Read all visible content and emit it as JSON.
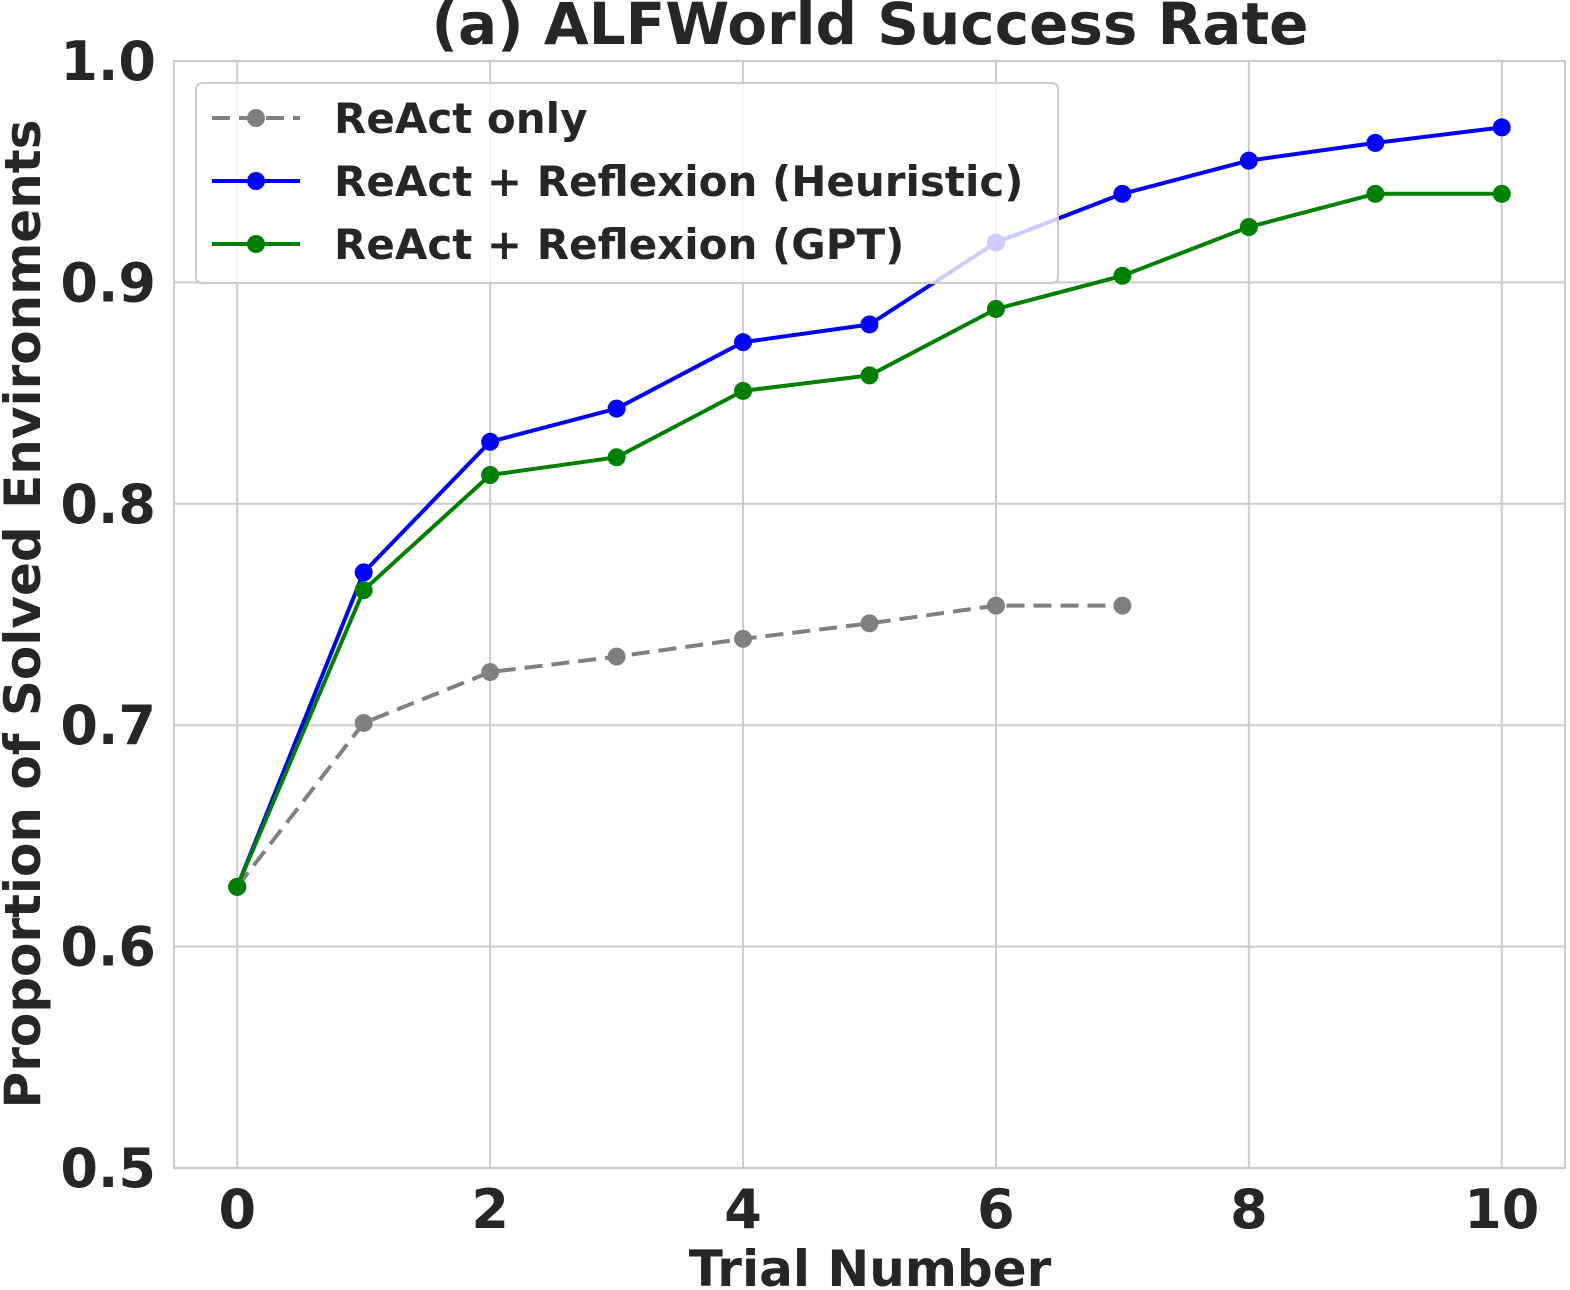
{
  "chart_data": {
    "type": "line",
    "title": "(a) ALFWorld Success Rate",
    "xlabel": "Trial Number",
    "ylabel": "Proportion of Solved Environments",
    "xlim": [
      -0.5,
      10.5
    ],
    "ylim": [
      0.5,
      1.0
    ],
    "xticks": [
      0,
      2,
      4,
      6,
      8,
      10
    ],
    "xtick_labels": [
      "0",
      "2",
      "4",
      "6",
      "8",
      "10"
    ],
    "yticks": [
      0.5,
      0.6,
      0.7,
      0.8,
      0.9,
      1.0
    ],
    "ytick_labels": [
      "0.5",
      "0.6",
      "0.7",
      "0.8",
      "0.9",
      "1.0"
    ],
    "grid": true,
    "legend_position": "top-left",
    "series": [
      {
        "name": "ReAct only",
        "color": "#808080",
        "dashed": true,
        "x": [
          0,
          1,
          2,
          3,
          4,
          5,
          6,
          7
        ],
        "y": [
          0.627,
          0.701,
          0.724,
          0.731,
          0.739,
          0.746,
          0.754,
          0.754
        ]
      },
      {
        "name": "ReAct + Reflexion (Heuristic)",
        "color": "#0000ff",
        "dashed": false,
        "x": [
          0,
          1,
          2,
          3,
          4,
          5,
          6,
          7,
          8,
          9,
          10
        ],
        "y": [
          0.627,
          0.769,
          0.828,
          0.843,
          0.873,
          0.881,
          0.918,
          0.94,
          0.955,
          0.963,
          0.97
        ]
      },
      {
        "name": "ReAct + Reflexion (GPT)",
        "color": "#008000",
        "dashed": false,
        "x": [
          0,
          1,
          2,
          3,
          4,
          5,
          6,
          7,
          8,
          9,
          10
        ],
        "y": [
          0.627,
          0.761,
          0.813,
          0.821,
          0.851,
          0.858,
          0.888,
          0.903,
          0.925,
          0.94,
          0.94
        ]
      }
    ]
  }
}
